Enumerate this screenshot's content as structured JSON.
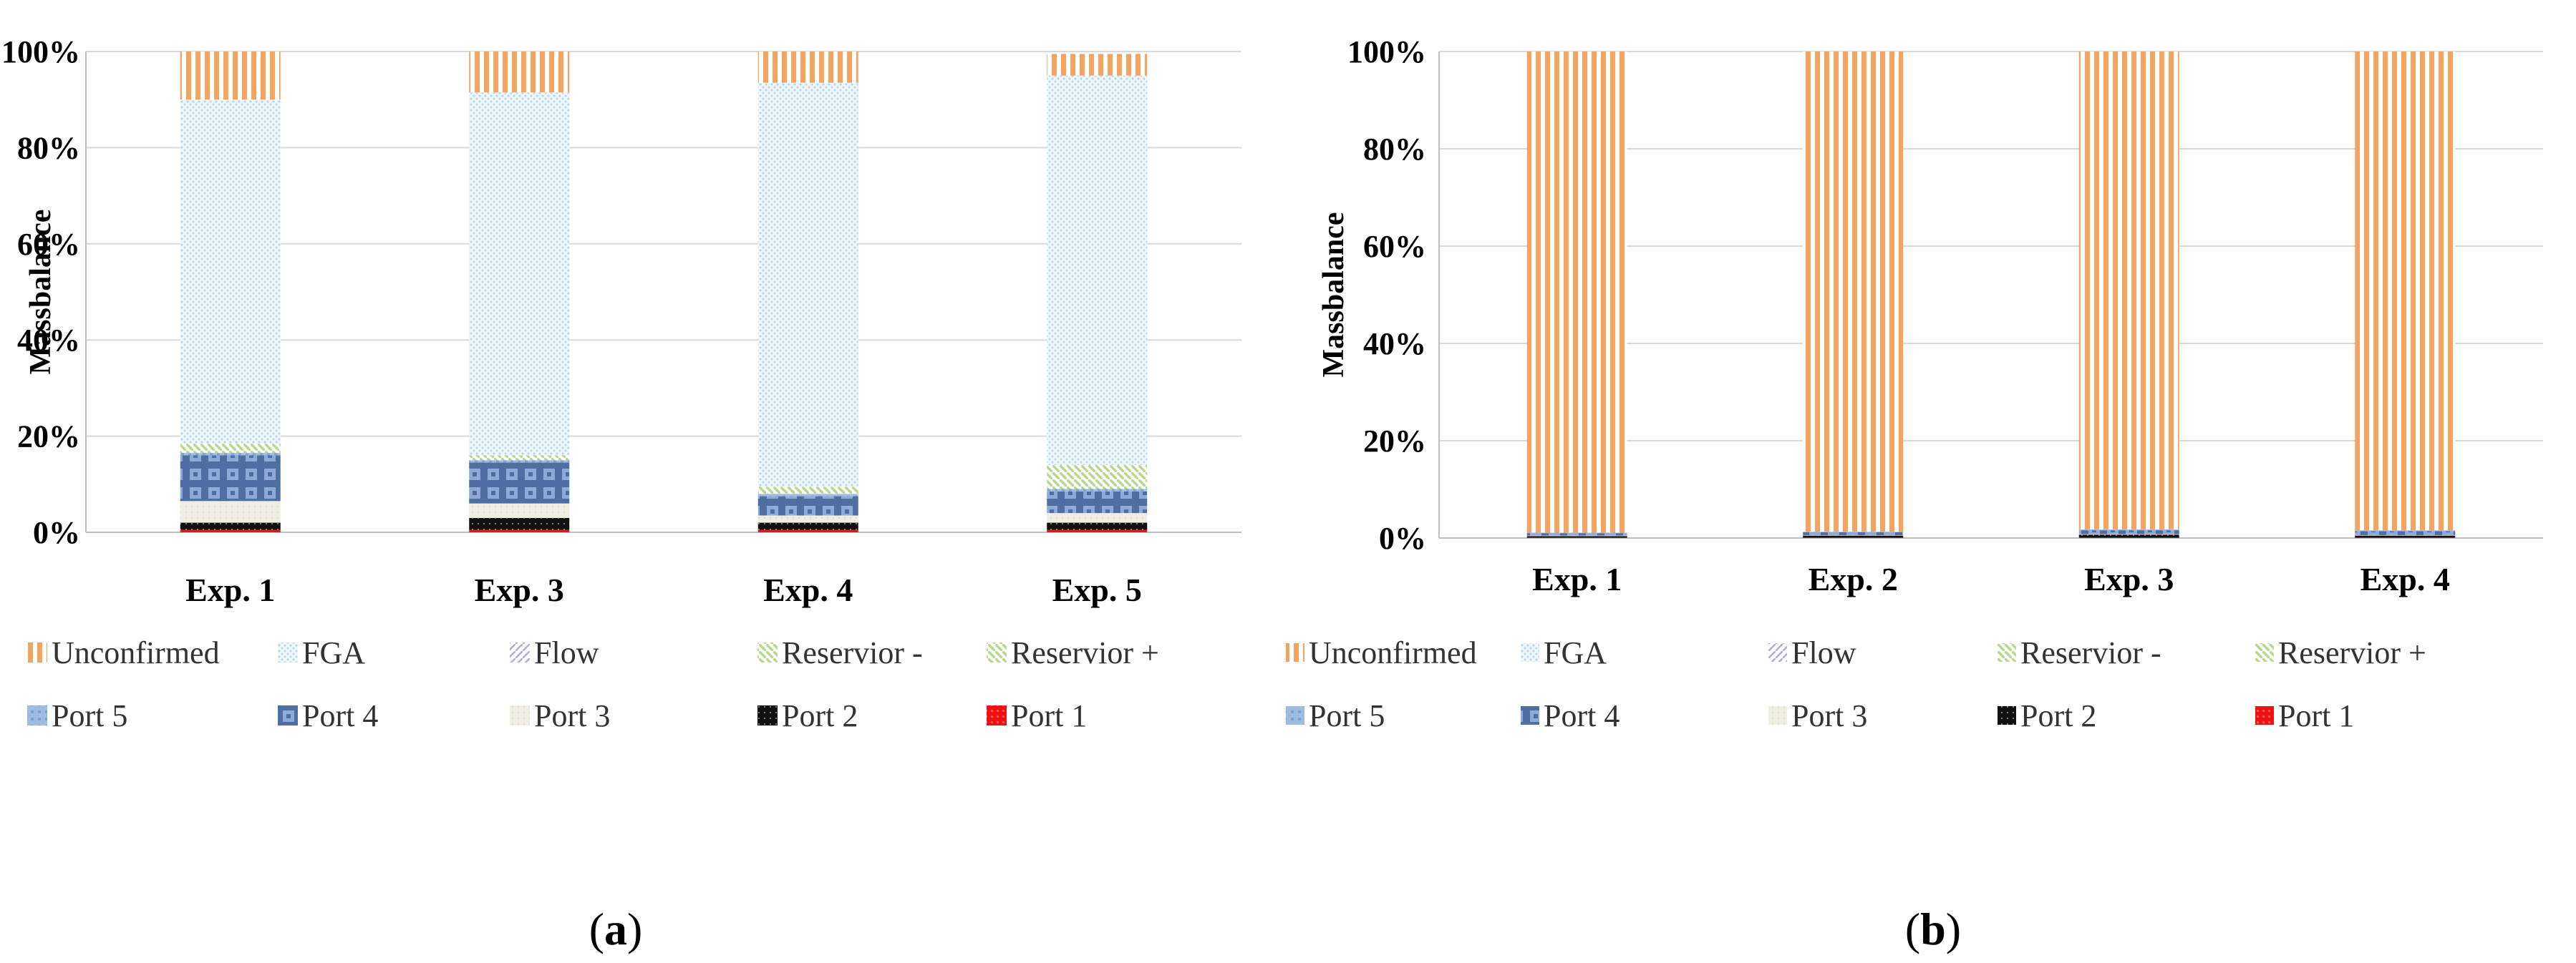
{
  "colors": {
    "Unconfirmed": "#f4a460",
    "FGA": "#d6eaf5",
    "Flow": "#b3a9dd",
    "Reservior -": "#b6d98d",
    "Reservior +": "#e8908a",
    "Port 5": "#9fbde0",
    "Port 4": "#4f6fa3",
    "Port 3": "#eeeee2",
    "Port 2": "#111111",
    "Port 1": "#ee1111",
    "grid": "#d9d9d9",
    "axis": "#bfbfbf"
  },
  "chart_data": [
    {
      "panel": "a",
      "type": "bar",
      "stacked": true,
      "ylabel": "Massbalance",
      "ylim": [
        0,
        100
      ],
      "yticks": [
        "0%",
        "20%",
        "40%",
        "60%",
        "80%",
        "100%"
      ],
      "categories": [
        "Exp. 1",
        "Exp. 3",
        "Exp. 4",
        "Exp. 5"
      ],
      "series": [
        {
          "name": "Port 1",
          "values": [
            0.5,
            0.5,
            0.5,
            0.5
          ]
        },
        {
          "name": "Port 2",
          "values": [
            1.5,
            2.5,
            1.5,
            1.5
          ]
        },
        {
          "name": "Port 3",
          "values": [
            4.5,
            3.0,
            1.5,
            2.0
          ]
        },
        {
          "name": "Port 4",
          "values": [
            9.5,
            8.5,
            4.0,
            4.5
          ]
        },
        {
          "name": "Port 5",
          "values": [
            0.5,
            0.5,
            0.5,
            0.5
          ]
        },
        {
          "name": "Reservior +",
          "values": [
            2.0,
            1.0,
            1.5,
            5.0
          ]
        },
        {
          "name": "Reservior -",
          "values": [
            0.0,
            0.0,
            0.0,
            0.0
          ]
        },
        {
          "name": "Flow",
          "values": [
            0.0,
            0.0,
            0.0,
            0.0
          ]
        },
        {
          "name": "FGA",
          "values": [
            71.5,
            75.5,
            84.0,
            81.0
          ]
        },
        {
          "name": "Unconfirmed",
          "values": [
            10.0,
            8.5,
            6.5,
            4.5
          ]
        }
      ]
    },
    {
      "panel": "b",
      "type": "bar",
      "stacked": true,
      "ylabel": "Massbalance",
      "ylim": [
        0,
        100
      ],
      "yticks": [
        "0%",
        "20%",
        "40%",
        "60%",
        "80%",
        "100%"
      ],
      "categories": [
        "Exp. 1",
        "Exp. 2",
        "Exp. 3",
        "Exp. 4"
      ],
      "series": [
        {
          "name": "Port 1",
          "values": [
            0.1,
            0.1,
            0.1,
            0.1
          ]
        },
        {
          "name": "Port 2",
          "values": [
            0.3,
            0.4,
            0.6,
            0.4
          ]
        },
        {
          "name": "Port 3",
          "values": [
            0.1,
            0.1,
            0.1,
            0.1
          ]
        },
        {
          "name": "Port 4",
          "values": [
            0.5,
            0.6,
            0.8,
            0.8
          ]
        },
        {
          "name": "Port 5",
          "values": [
            0.1,
            0.1,
            0.2,
            0.2
          ]
        },
        {
          "name": "Reservior +",
          "values": [
            0,
            0,
            0,
            0
          ]
        },
        {
          "name": "Reservior -",
          "values": [
            0,
            0,
            0,
            0
          ]
        },
        {
          "name": "Flow",
          "values": [
            0,
            0,
            0,
            0
          ]
        },
        {
          "name": "FGA",
          "values": [
            0,
            0,
            0,
            0
          ]
        },
        {
          "name": "Unconfirmed",
          "values": [
            98.9,
            98.7,
            98.2,
            98.4
          ]
        }
      ]
    }
  ],
  "legend": {
    "row1": [
      "Unconfirmed",
      "FGA",
      "Flow",
      "Reservior -",
      "Reservior +"
    ],
    "row2": [
      "Port 5",
      "Port 4",
      "Port 3",
      "Port 2",
      "Port 1"
    ]
  },
  "panels": {
    "a": {
      "open": "(",
      "letter": "a",
      "close": ")"
    },
    "b": {
      "open": "(",
      "letter": "b",
      "close": ")"
    }
  }
}
